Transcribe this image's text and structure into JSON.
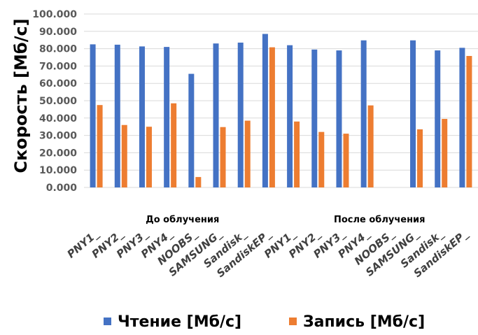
{
  "chart_data": {
    "type": "bar",
    "ylabel": "Скорость [Мб/с]",
    "ylim": [
      0,
      100
    ],
    "yticks": [
      "0.000",
      "10.000",
      "20.000",
      "30.000",
      "40.000",
      "50.000",
      "60.000",
      "70.000",
      "80.000",
      "90.000",
      "100.000"
    ],
    "grid": true,
    "legend_position": "bottom",
    "categories": [
      "PNY1_",
      "PNY2_",
      "PNY3_",
      "PNY4_",
      "NOOBS_",
      "SAMSUNG_",
      "Sandisk_",
      "SandiskEP_",
      "PNY1_",
      "PNY2_",
      "PNY3_",
      "PNY4_",
      "NOOBS_",
      "SAMSUNG_",
      "Sandisk_",
      "SandiskEP_"
    ],
    "groups": [
      {
        "label": "До облучения",
        "start": 0,
        "end": 7
      },
      {
        "label": "После облучения",
        "start": 8,
        "end": 15
      }
    ],
    "series": [
      {
        "name": "Чтение [Мб/с]",
        "color": "#4472C4",
        "values": [
          82.5,
          82.3,
          81.3,
          81.0,
          65.5,
          83.0,
          83.5,
          88.5,
          82.0,
          79.5,
          79.0,
          84.8,
          null,
          84.8,
          79.0,
          80.5
        ]
      },
      {
        "name": "Запись [Мб/с]",
        "color": "#ED7D31",
        "values": [
          47.5,
          36.0,
          35.0,
          48.5,
          6.0,
          34.8,
          38.5,
          80.8,
          38.0,
          32.0,
          31.0,
          47.3,
          null,
          33.5,
          39.5,
          75.8
        ]
      }
    ]
  }
}
